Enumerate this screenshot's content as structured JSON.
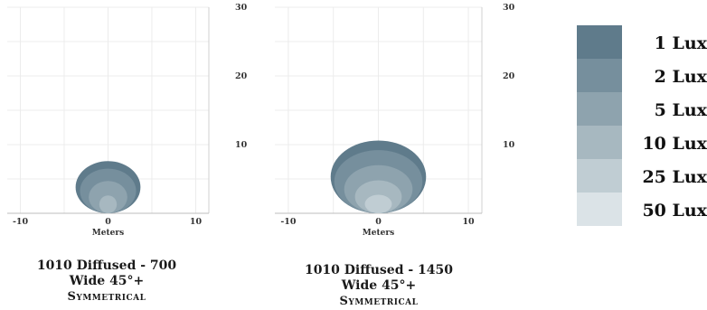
{
  "chart_data": [
    {
      "type": "heatmap",
      "title": "1010 Diffused - 700",
      "subtitle": "Wide 45°+",
      "distribution": "Symmetrical",
      "xlabel": "Meters",
      "x_ticks": [
        -10,
        0,
        10
      ],
      "y_ticks": [
        10,
        20,
        30
      ],
      "xlim": [
        -11.5,
        11.5
      ],
      "ylim": [
        0,
        30
      ],
      "contours": [
        {
          "lux": "1 Lux",
          "half_width": 3.7,
          "height": 7.6
        },
        {
          "lux": "2 Lux",
          "half_width": 3.2,
          "height": 6.5
        },
        {
          "lux": "5 Lux",
          "half_width": 2.2,
          "height": 4.7
        },
        {
          "lux": "10 Lux",
          "half_width": 1.0,
          "height": 2.6
        }
      ]
    },
    {
      "type": "heatmap",
      "title": "1010 Diffused - 1450",
      "subtitle": "Wide 45°+",
      "distribution": "Symmetrical",
      "xlabel": "Meters",
      "x_ticks": [
        -10,
        0,
        10
      ],
      "y_ticks": [
        10,
        20,
        30
      ],
      "xlim": [
        -11.5,
        11.5
      ],
      "ylim": [
        0,
        30
      ],
      "contours": [
        {
          "lux": "1 Lux",
          "half_width": 5.3,
          "height": 10.6
        },
        {
          "lux": "2 Lux",
          "half_width": 4.9,
          "height": 9.2
        },
        {
          "lux": "5 Lux",
          "half_width": 3.8,
          "height": 7.0
        },
        {
          "lux": "10 Lux",
          "half_width": 2.6,
          "height": 4.8
        },
        {
          "lux": "25 Lux",
          "half_width": 1.5,
          "height": 2.7
        }
      ]
    }
  ],
  "legend": [
    {
      "label": "1 Lux",
      "color": "#5f7b8b"
    },
    {
      "label": "2 Lux",
      "color": "#768f9d"
    },
    {
      "label": "5 Lux",
      "color": "#8ea3ae"
    },
    {
      "label": "10 Lux",
      "color": "#a7b8c0"
    },
    {
      "label": "25 Lux",
      "color": "#c0cdd3"
    },
    {
      "label": "50 Lux",
      "color": "#dbe3e7"
    }
  ]
}
